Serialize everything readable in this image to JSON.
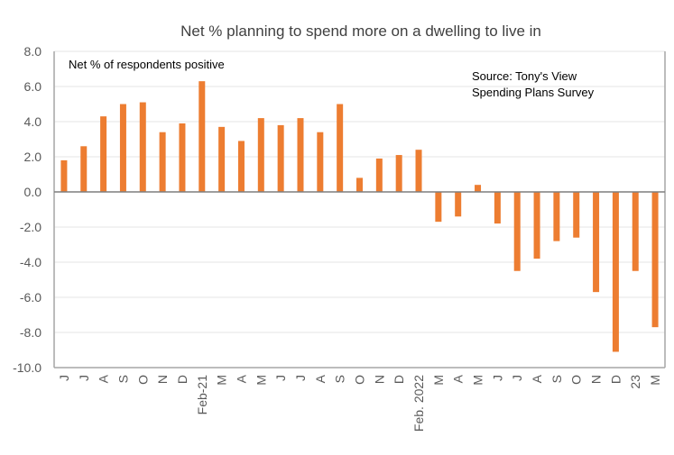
{
  "chart_data": {
    "type": "bar",
    "title": "Net % planning to spend more on a dwelling to live in",
    "annotations": {
      "ylabel_note": "Net % of respondents positive",
      "source_line1": "Source: Tony's View",
      "source_line2": "Spending Plans Survey"
    },
    "categories": [
      "J",
      "J",
      "A",
      "S",
      "O",
      "N",
      "D",
      "Feb-21",
      "M",
      "A",
      "M",
      "J",
      "J",
      "A",
      "S",
      "O",
      "N",
      "D",
      "Feb. 2022",
      "M",
      "A",
      "M",
      "J",
      "J",
      "A",
      "S",
      "O",
      "N",
      "D",
      "23",
      "M"
    ],
    "values": [
      1.8,
      2.6,
      4.3,
      5.0,
      5.1,
      3.4,
      3.9,
      6.3,
      3.7,
      2.9,
      4.2,
      3.8,
      4.2,
      3.4,
      5.0,
      0.8,
      1.9,
      2.1,
      2.4,
      -1.7,
      -1.4,
      0.4,
      -1.8,
      -4.5,
      -3.8,
      -2.8,
      -2.6,
      -5.7,
      -9.1,
      -4.5,
      -7.7
    ],
    "ylim": [
      -10,
      8
    ],
    "yticks": [
      "8.0",
      "6.0",
      "4.0",
      "2.0",
      "0.0",
      "-2.0",
      "-4.0",
      "-6.0",
      "-8.0",
      "-10.0"
    ],
    "ytick_values": [
      8,
      6,
      4,
      2,
      0,
      -2,
      -4,
      -6,
      -8,
      -10
    ],
    "grid": true,
    "bar_color": "#ED7D31"
  }
}
